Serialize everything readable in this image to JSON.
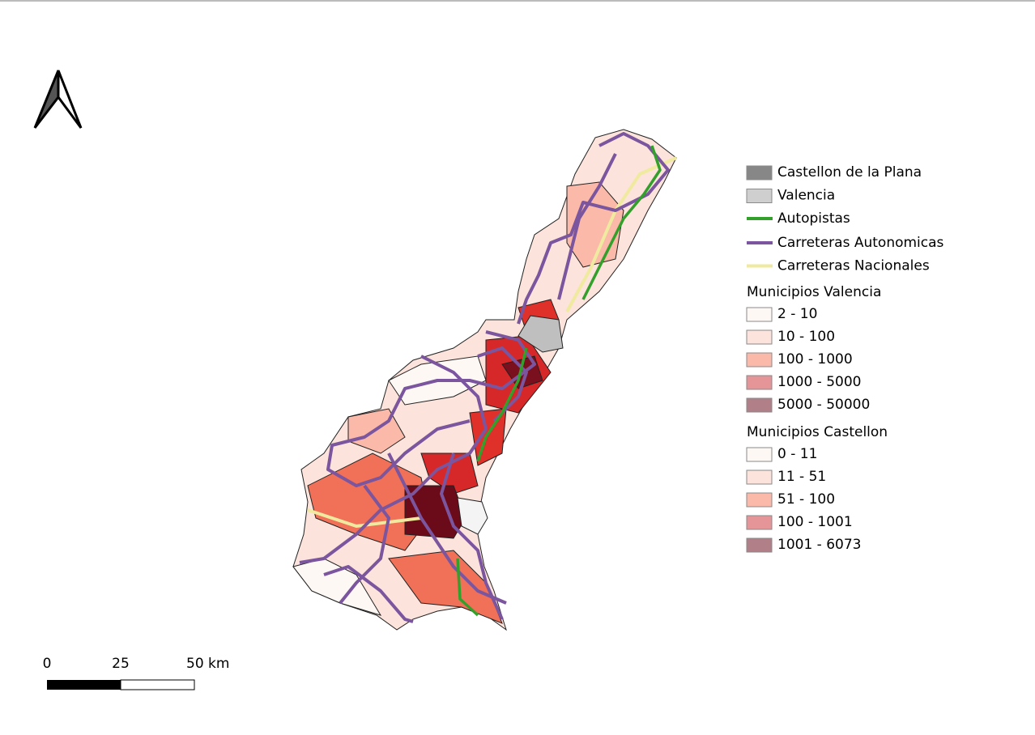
{
  "legend": {
    "items": [
      {
        "label": "Castellon de la Plana",
        "kind": "box",
        "color": "#878787"
      },
      {
        "label": "Valencia",
        "kind": "box",
        "color": "#cfcfcf"
      },
      {
        "label": "Autopistas",
        "kind": "line",
        "color": "#33a02c"
      },
      {
        "label": "Carreteras Autonomicas",
        "kind": "line",
        "color": "#7b559e"
      },
      {
        "label": "Carreteras Nacionales",
        "kind": "line",
        "color": "#f0eaa0"
      }
    ],
    "groups": [
      {
        "title": "Municipios  Valencia",
        "items": [
          {
            "label": "2 - 10",
            "color": "#fef8f5"
          },
          {
            "label": "10 - 100",
            "color": "#fce3db"
          },
          {
            "label": "100 - 1000",
            "color": "#fab9a9"
          },
          {
            "label": "1000 - 5000",
            "color": "#e59498"
          },
          {
            "label": "5000 - 50000",
            "color": "#b07f88"
          }
        ]
      },
      {
        "title": "Municipios Castellon",
        "items": [
          {
            "label": "0 - 11",
            "color": "#fef8f5"
          },
          {
            "label": "11 - 51",
            "color": "#fce3db"
          },
          {
            "label": "51 - 100",
            "color": "#fab9a9"
          },
          {
            "label": "100 - 1001",
            "color": "#e59498"
          },
          {
            "label": "1001 - 6073",
            "color": "#b07f88"
          }
        ]
      }
    ]
  },
  "scale_bar": {
    "labels": [
      "0",
      "25",
      "50 km"
    ]
  }
}
